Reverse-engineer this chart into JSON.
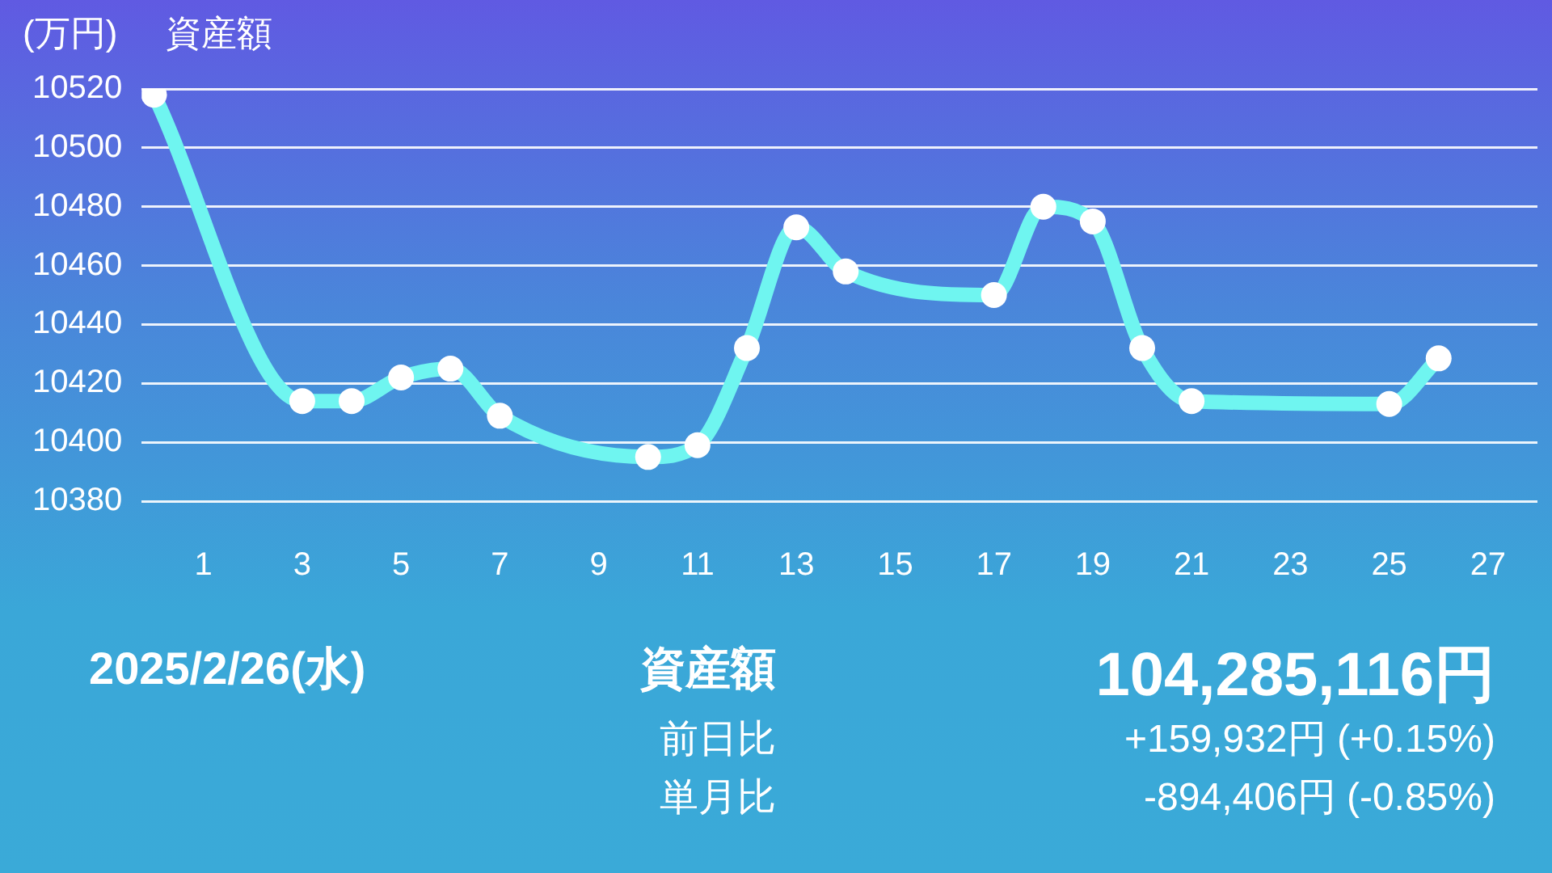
{
  "chart_data": {
    "type": "line",
    "title": "資産額",
    "ylabel": "(万円)",
    "x": [
      0,
      3,
      4,
      5,
      6,
      7,
      10,
      11,
      12,
      13,
      14,
      17,
      18,
      19,
      20,
      21,
      25,
      26
    ],
    "series": [
      {
        "color": "#6ff5f0",
        "values": [
          10518,
          10414,
          10414,
          10422,
          10425,
          10409,
          10395,
          10399,
          10432,
          10473,
          10458,
          10450,
          10480,
          10475,
          10432,
          10414,
          10413,
          10428.5
        ]
      }
    ],
    "xlim": [
      -0.25,
      28
    ],
    "xticks": [
      1,
      3,
      5,
      7,
      9,
      11,
      13,
      15,
      17,
      19,
      21,
      23,
      25,
      27
    ],
    "ylim": [
      10380,
      10520
    ],
    "yticks": [
      10380,
      10400,
      10420,
      10440,
      10460,
      10480,
      10500,
      10520
    ],
    "grid": "y",
    "legend": false,
    "marker": "circle",
    "line_style": "solid",
    "annotations": [
      "2025/2/26(水)",
      "資産額",
      "104,285,116円",
      "前日比",
      "+159,932円 (+0.15%)",
      "単月比",
      "-894,406円 (-0.85%)"
    ]
  }
}
